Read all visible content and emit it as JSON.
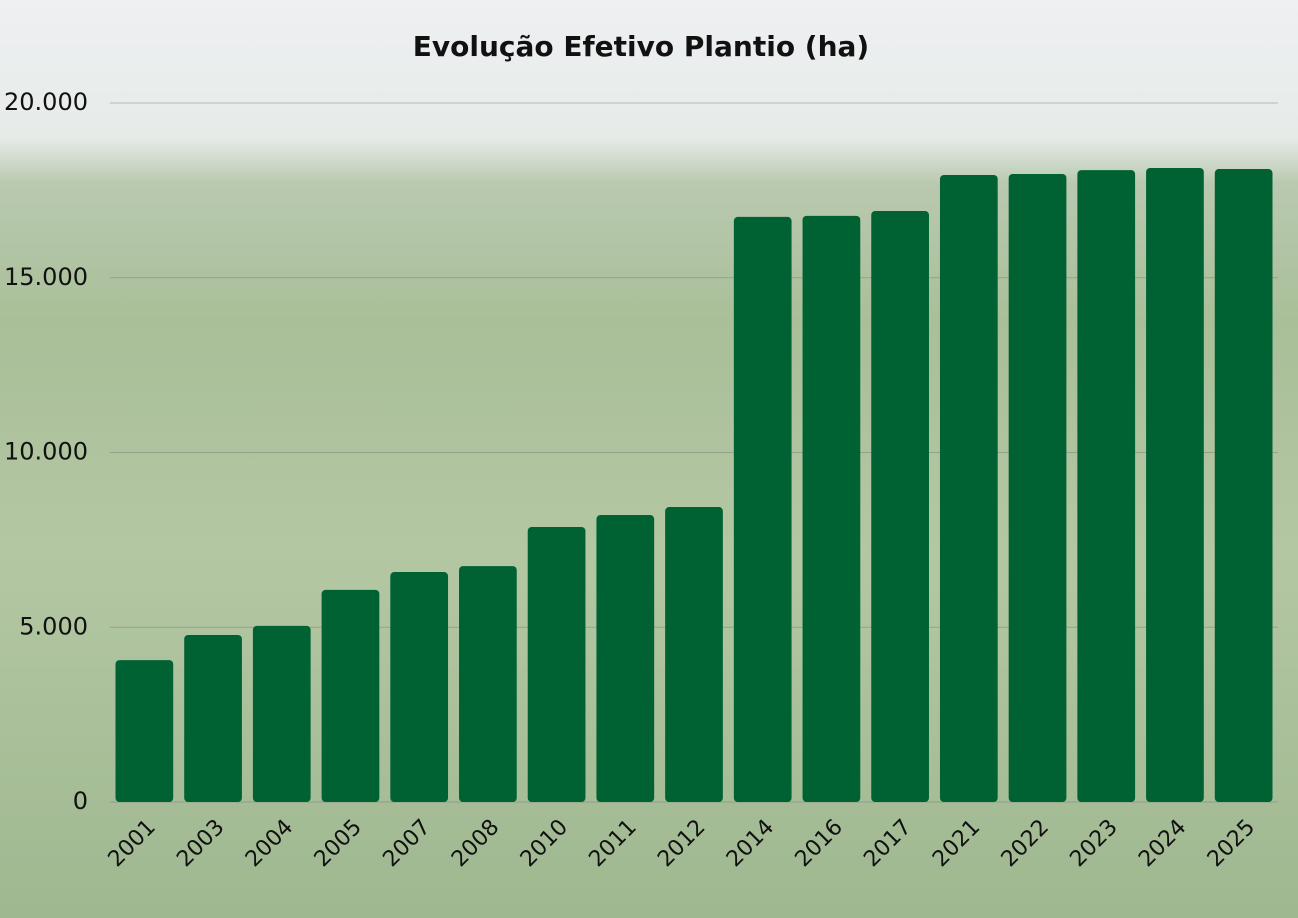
{
  "chart_data": {
    "type": "bar",
    "title": "Evolução Efetivo Plantio (ha)",
    "categories": [
      "2001",
      "2003",
      "2004",
      "2005",
      "2007",
      "2008",
      "2010",
      "2011",
      "2012",
      "2014",
      "2016",
      "2017",
      "2021",
      "2022",
      "2023",
      "2024",
      "2025"
    ],
    "values": [
      4060,
      4780,
      5040,
      6070,
      6580,
      6750,
      7870,
      8210,
      8440,
      16740,
      16770,
      16910,
      17940,
      17970,
      18080,
      18140,
      18110
    ],
    "color": "#006233",
    "ylim": [
      0,
      20000
    ],
    "yticks": [
      0,
      {
        "value": 5000,
        "label": "5.000"
      },
      {
        "value": 10000,
        "label": "10.000"
      },
      {
        "value": 15000,
        "label": "15.000"
      },
      {
        "value": 20000,
        "label": "20.000"
      }
    ],
    "grid": true
  }
}
